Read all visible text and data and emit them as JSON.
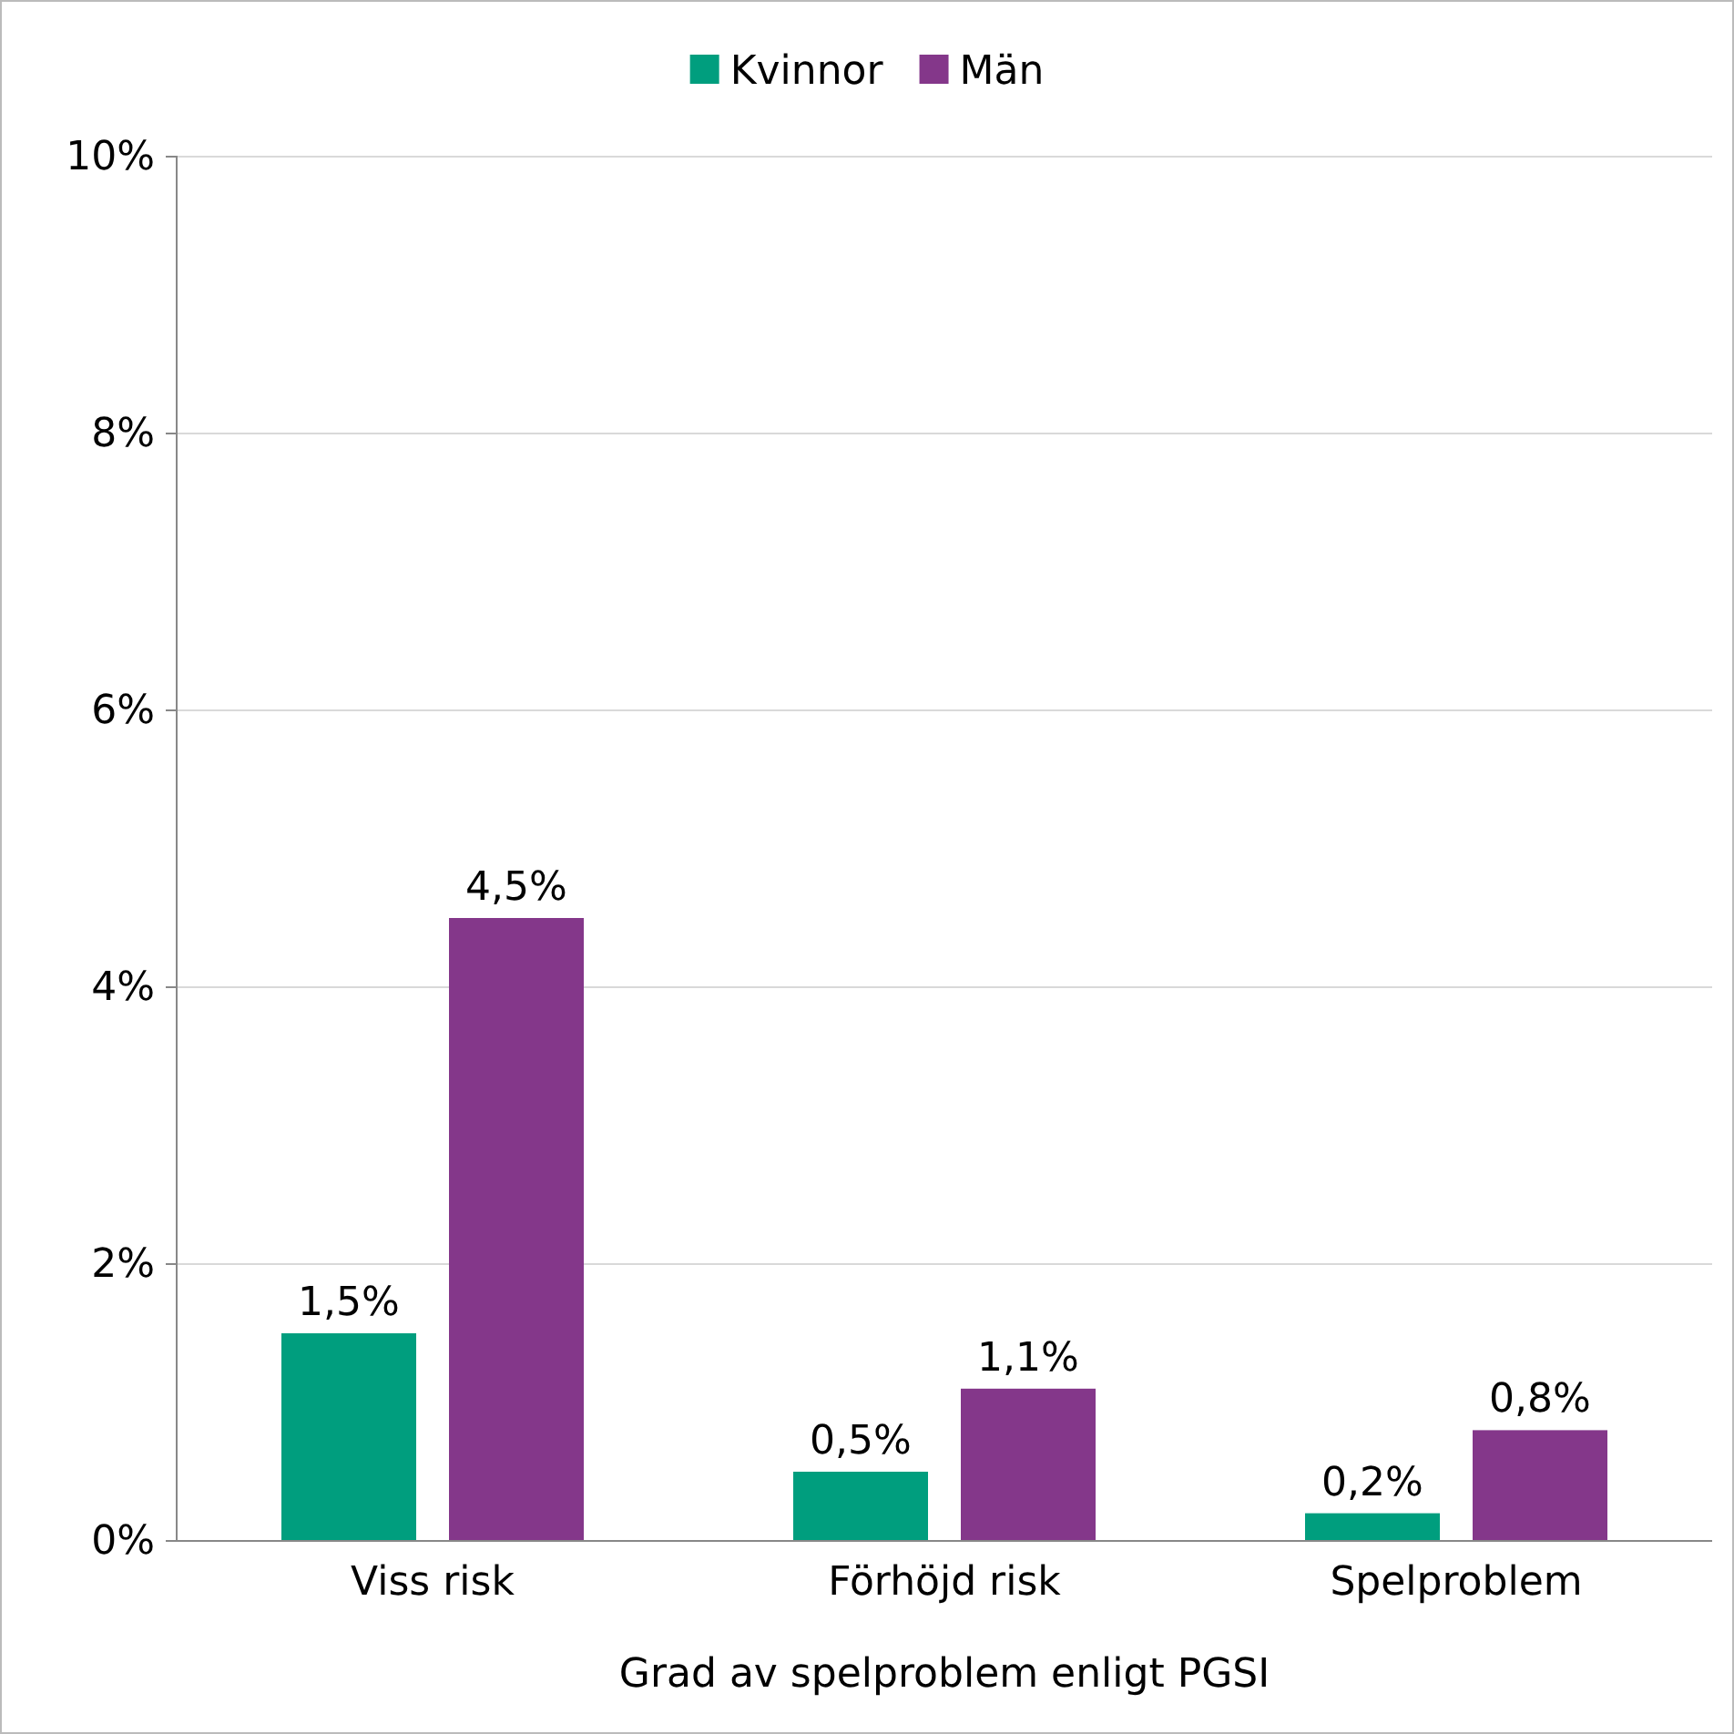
{
  "chart_data": {
    "type": "bar",
    "xlabel": "Grad av spelproblem enligt PGSI",
    "categories": [
      "Viss risk",
      "Förhöjd risk",
      "Spelproblem"
    ],
    "series": [
      {
        "name": "Kvinnor",
        "color": "#009e7e",
        "values": [
          1.5,
          0.5,
          0.2
        ],
        "value_labels": [
          "1,5%",
          "0,5%",
          "0,2%"
        ]
      },
      {
        "name": "Män",
        "color": "#84378a",
        "values": [
          4.5,
          1.1,
          0.8
        ],
        "value_labels": [
          "4,5%",
          "1,1%",
          "0,8%"
        ]
      }
    ],
    "ylim": [
      0,
      10
    ],
    "yticks": [
      {
        "value": 0,
        "label": "0%"
      },
      {
        "value": 2,
        "label": "2%"
      },
      {
        "value": 4,
        "label": "4%"
      },
      {
        "value": 6,
        "label": "6%"
      },
      {
        "value": 8,
        "label": "8%"
      },
      {
        "value": 10,
        "label": "10%"
      }
    ],
    "grid": "y",
    "legend": "top"
  }
}
